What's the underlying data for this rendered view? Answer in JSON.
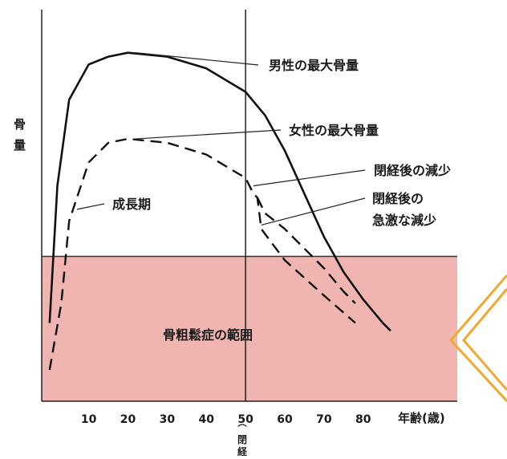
{
  "chart_data": {
    "type": "line",
    "title": "",
    "ylabel": "骨量",
    "xlabel": "年齢(歳)",
    "xlim": [
      -2,
      104
    ],
    "ylim": [
      0,
      100
    ],
    "x_ticks": [
      10,
      20,
      30,
      40,
      50,
      60,
      70,
      80
    ],
    "menopause_x": 50,
    "menopause_label": "閉経",
    "osteoporosis_threshold": 37,
    "osteoporosis_region_label": "骨粗鬆症の範囲",
    "series": [
      {
        "name": "男性の最大骨量",
        "style": "solid",
        "points": [
          [
            0,
            20
          ],
          [
            2,
            55
          ],
          [
            5,
            77
          ],
          [
            10,
            86
          ],
          [
            15,
            88
          ],
          [
            20,
            89
          ],
          [
            30,
            88
          ],
          [
            40,
            85
          ],
          [
            50,
            79
          ],
          [
            55,
            73
          ],
          [
            60,
            64
          ],
          [
            65,
            53
          ],
          [
            70,
            42
          ],
          [
            75,
            33
          ],
          [
            80,
            26
          ],
          [
            85,
            20
          ],
          [
            87,
            18
          ]
        ]
      },
      {
        "name": "女性の最大骨量",
        "style": "dashed",
        "points": [
          [
            0,
            8
          ],
          [
            3,
            25
          ],
          [
            5,
            46
          ],
          [
            10,
            61
          ],
          [
            15,
            66
          ],
          [
            20,
            67
          ],
          [
            30,
            66
          ],
          [
            40,
            63
          ],
          [
            50,
            57
          ],
          [
            52,
            53
          ],
          [
            53,
            52
          ],
          [
            54,
            44
          ],
          [
            57,
            40
          ],
          [
            60,
            36
          ],
          [
            70,
            27
          ],
          [
            78,
            20
          ]
        ]
      },
      {
        "name": "閉経後の減少",
        "style": "dashed",
        "points": [
          [
            53,
            52
          ],
          [
            55,
            48
          ],
          [
            60,
            44
          ],
          [
            65,
            39
          ],
          [
            70,
            34
          ],
          [
            75,
            28
          ],
          [
            78,
            25
          ]
        ]
      }
    ],
    "annotations": [
      {
        "text": "男性の最大骨量",
        "anchor": [
          22,
          89
        ]
      },
      {
        "text": "女性の最大骨量",
        "anchor": [
          22,
          67
        ]
      },
      {
        "text": "閉経後の減少",
        "anchor": [
          52,
          55
        ]
      },
      {
        "text": "閉経後の",
        "anchor": [
          54,
          45
        ]
      },
      {
        "text": "急激な減少",
        "anchor": [
          54,
          45
        ]
      },
      {
        "text": "成長期",
        "anchor": [
          7,
          49
        ]
      }
    ]
  },
  "pointer_color": "#f0a830",
  "region_color": "#f0b5b0"
}
